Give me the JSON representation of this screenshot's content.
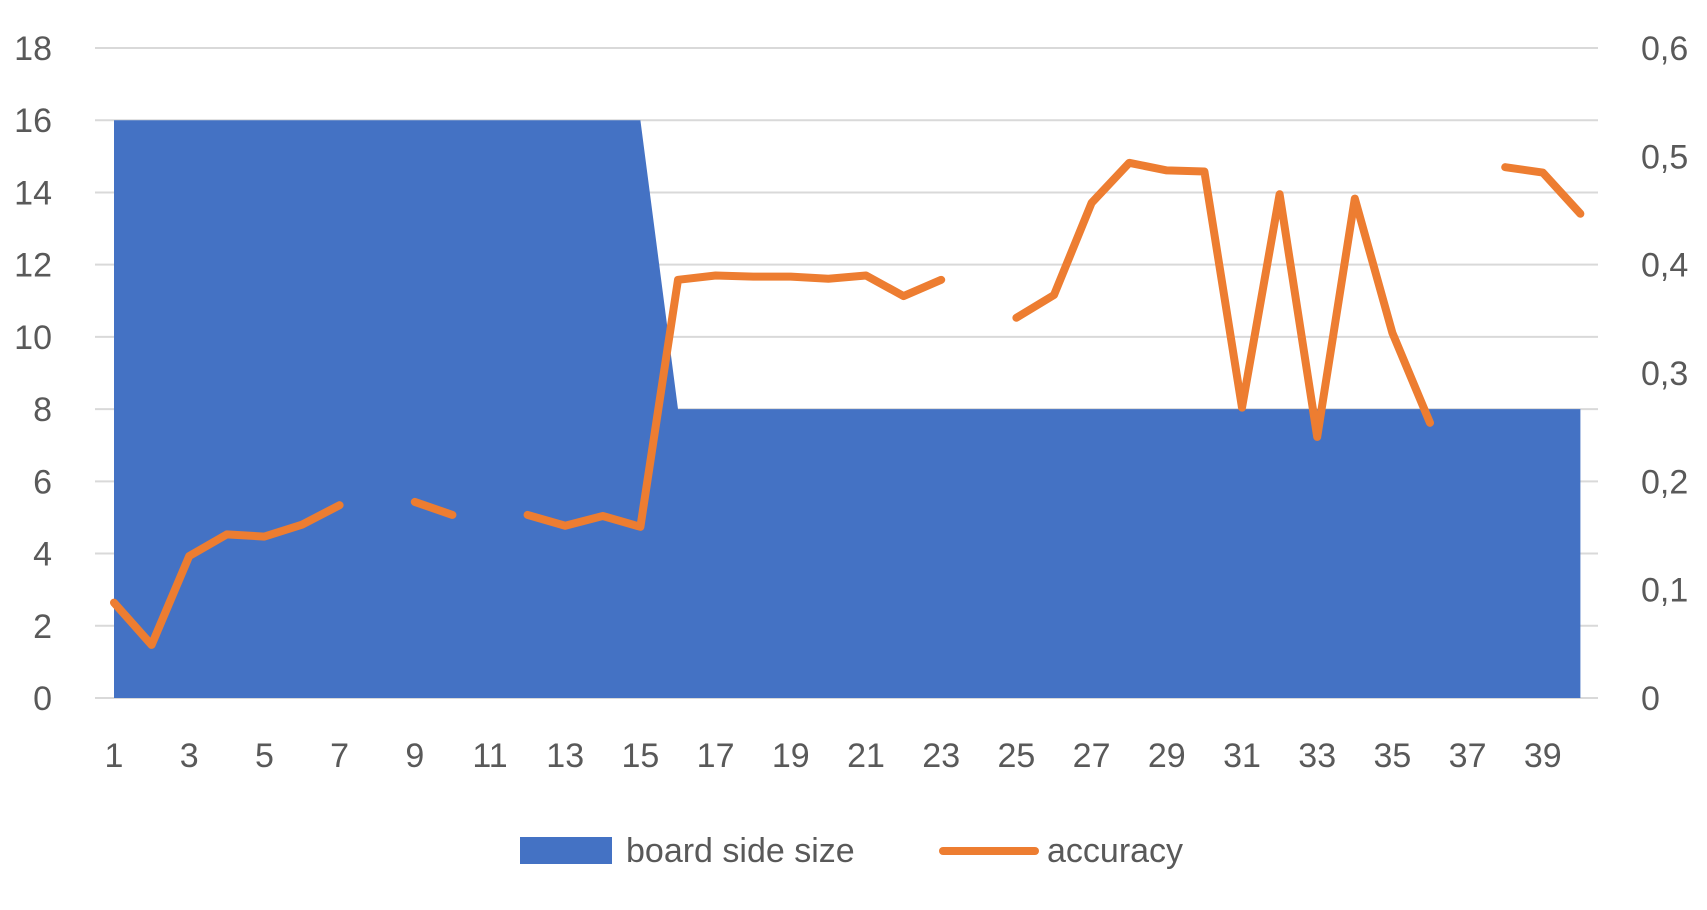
{
  "chart_data": {
    "type": "area+line",
    "title": "",
    "xlabel": "",
    "ylabel": "",
    "x": [
      1,
      2,
      3,
      4,
      5,
      6,
      7,
      8,
      9,
      10,
      11,
      12,
      13,
      14,
      15,
      16,
      17,
      18,
      19,
      20,
      21,
      22,
      23,
      24,
      25,
      26,
      27,
      28,
      29,
      30,
      31,
      32,
      33,
      34,
      35,
      36,
      37,
      38,
      39,
      40
    ],
    "x_tick_labels": [
      "1",
      "3",
      "5",
      "7",
      "9",
      "11",
      "13",
      "15",
      "17",
      "19",
      "21",
      "23",
      "25",
      "27",
      "29",
      "31",
      "33",
      "35",
      "37",
      "39"
    ],
    "y_left": {
      "min": 0,
      "max": 18,
      "step": 2,
      "tick_labels": [
        "0",
        "2",
        "4",
        "6",
        "8",
        "10",
        "12",
        "14",
        "16",
        "18"
      ]
    },
    "y_right": {
      "min": 0,
      "max": 0.6,
      "step": 0.1,
      "tick_labels": [
        "0",
        "0,1",
        "0,2",
        "0,3",
        "0,4",
        "0,5",
        "0,6"
      ]
    },
    "grid": true,
    "legend_position": "bottom",
    "series": [
      {
        "name": "board side size",
        "type": "area",
        "axis": "left",
        "color": "#4472C4",
        "values": [
          16,
          16,
          16,
          16,
          16,
          16,
          16,
          16,
          16,
          16,
          16,
          16,
          16,
          16,
          16,
          8,
          8,
          8,
          8,
          8,
          8,
          8,
          8,
          8,
          8,
          8,
          8,
          8,
          8,
          8,
          8,
          8,
          8,
          8,
          8,
          8,
          8,
          8,
          8,
          8
        ]
      },
      {
        "name": "accuracy",
        "type": "line",
        "axis": "right",
        "color": "#ED7D31",
        "values": [
          0.088,
          0.049,
          0.131,
          0.151,
          0.149,
          0.16,
          0.178,
          null,
          0.181,
          0.169,
          null,
          0.169,
          0.159,
          0.168,
          0.158,
          0.386,
          0.39,
          0.389,
          0.389,
          0.387,
          0.39,
          0.371,
          0.386,
          null,
          0.351,
          0.372,
          0.457,
          0.494,
          0.487,
          0.486,
          0.268,
          0.465,
          0.241,
          0.461,
          0.337,
          0.254,
          null,
          0.49,
          0.485,
          0.447
        ]
      }
    ]
  }
}
